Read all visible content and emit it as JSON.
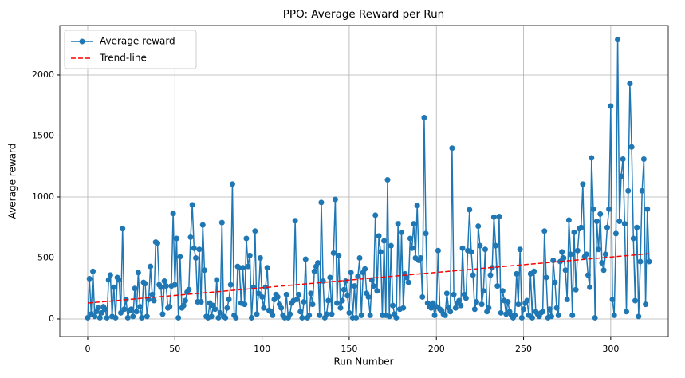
{
  "chart_data": {
    "type": "line",
    "title": "PPO: Average Reward per Run",
    "x_label": "Run Number",
    "y_label": "Average reward",
    "xlim": [
      -16,
      333
    ],
    "ylim": [
      -144,
      2405
    ],
    "xticks": [
      0,
      50,
      100,
      150,
      200,
      250,
      300
    ],
    "yticks": [
      0,
      500,
      1000,
      1500,
      2000
    ],
    "grid": true,
    "legend": "upper left",
    "series": [
      {
        "name": "Average reward",
        "color": "#1f77b4",
        "marker": true,
        "linestyle": "solid",
        "x": [
          0,
          1,
          2,
          3,
          4,
          5,
          6,
          7,
          8,
          9,
          10,
          11,
          12,
          13,
          14,
          15,
          16,
          17,
          18,
          19,
          20,
          21,
          22,
          23,
          24,
          25,
          26,
          27,
          28,
          29,
          30,
          31,
          32,
          33,
          34,
          35,
          36,
          37,
          38,
          39,
          40,
          41,
          42,
          43,
          44,
          45,
          46,
          47,
          48,
          49,
          50,
          51,
          52,
          53,
          54,
          55,
          56,
          57,
          58,
          59,
          60,
          61,
          62,
          63,
          64,
          65,
          66,
          67,
          68,
          69,
          70,
          71,
          72,
          73,
          74,
          75,
          76,
          77,
          78,
          79,
          80,
          81,
          82,
          83,
          84,
          85,
          86,
          87,
          88,
          89,
          90,
          91,
          92,
          93,
          94,
          95,
          96,
          97,
          98,
          99,
          100,
          101,
          102,
          103,
          104,
          105,
          106,
          107,
          108,
          109,
          110,
          111,
          112,
          113,
          114,
          115,
          116,
          117,
          118,
          119,
          120,
          121,
          122,
          123,
          124,
          125,
          126,
          127,
          128,
          129,
          130,
          131,
          132,
          133,
          134,
          135,
          136,
          137,
          138,
          139,
          140,
          141,
          142,
          143,
          144,
          145,
          146,
          147,
          148,
          149,
          150,
          151,
          152,
          153,
          154,
          155,
          156,
          157,
          158,
          159,
          160,
          161,
          162,
          163,
          164,
          165,
          166,
          167,
          168,
          169,
          170,
          171,
          172,
          173,
          174,
          175,
          176,
          177,
          178,
          179,
          180,
          181,
          182,
          183,
          184,
          185,
          186,
          187,
          188,
          189,
          190,
          191,
          192,
          193,
          194,
          195,
          196,
          197,
          198,
          199,
          200,
          201,
          202,
          203,
          204,
          205,
          206,
          207,
          208,
          209,
          210,
          211,
          212,
          213,
          214,
          215,
          216,
          217,
          218,
          219,
          220,
          221,
          222,
          223,
          224,
          225,
          226,
          227,
          228,
          229,
          230,
          231,
          232,
          233,
          234,
          235,
          236,
          237,
          238,
          239,
          240,
          241,
          242,
          243,
          244,
          245,
          246,
          247,
          248,
          249,
          250,
          251,
          252,
          253,
          254,
          255,
          256,
          257,
          258,
          259,
          260,
          261,
          262,
          263,
          264,
          265,
          266,
          267,
          268,
          269,
          270,
          271,
          272,
          273,
          274,
          275,
          276,
          277,
          278,
          279,
          280,
          281,
          282,
          283,
          284,
          285,
          286,
          287,
          288,
          289,
          290,
          291,
          292,
          293,
          294,
          295,
          296,
          297,
          298,
          299,
          300,
          301,
          302,
          303,
          304,
          305,
          306,
          307,
          308,
          309,
          310,
          311,
          312,
          313,
          314,
          315,
          316,
          317,
          318,
          319,
          320,
          321,
          322
        ],
        "values": [
          10,
          330,
          40,
          390,
          20,
          60,
          90,
          10,
          50,
          100,
          80,
          10,
          320,
          360,
          20,
          260,
          10,
          340,
          320,
          50,
          740,
          80,
          160,
          10,
          70,
          80,
          20,
          250,
          60,
          380,
          100,
          10,
          300,
          290,
          20,
          160,
          430,
          200,
          150,
          630,
          620,
          280,
          260,
          40,
          310,
          270,
          90,
          100,
          270,
          865,
          280,
          660,
          10,
          510,
          90,
          110,
          150,
          220,
          240,
          670,
          935,
          580,
          500,
          140,
          570,
          140,
          770,
          400,
          20,
          10,
          130,
          20,
          110,
          80,
          320,
          10,
          50,
          790,
          20,
          10,
          90,
          160,
          280,
          1105,
          30,
          10,
          430,
          420,
          130,
          420,
          120,
          660,
          430,
          520,
          10,
          260,
          720,
          40,
          210,
          500,
          180,
          90,
          260,
          420,
          70,
          60,
          30,
          160,
          200,
          180,
          120,
          90,
          30,
          10,
          200,
          10,
          40,
          130,
          150,
          805,
          160,
          200,
          60,
          10,
          140,
          490,
          10,
          30,
          210,
          120,
          390,
          430,
          460,
          30,
          955,
          310,
          10,
          40,
          150,
          340,
          40,
          540,
          980,
          130,
          520,
          90,
          150,
          240,
          310,
          190,
          50,
          380,
          10,
          270,
          10,
          350,
          500,
          30,
          380,
          410,
          210,
          180,
          30,
          320,
          270,
          850,
          230,
          680,
          550,
          30,
          640,
          30,
          1140,
          20,
          600,
          110,
          40,
          10,
          780,
          80,
          710,
          90,
          370,
          340,
          300,
          660,
          580,
          780,
          500,
          930,
          480,
          500,
          180,
          1650,
          700,
          130,
          100,
          90,
          130,
          30,
          100,
          560,
          80,
          70,
          40,
          30,
          210,
          90,
          60,
          1400,
          200,
          90,
          130,
          150,
          110,
          580,
          200,
          170,
          560,
          895,
          550,
          360,
          80,
          140,
          760,
          600,
          120,
          230,
          570,
          60,
          90,
          360,
          420,
          835,
          600,
          270,
          840,
          50,
          230,
          150,
          40,
          140,
          60,
          30,
          10,
          30,
          370,
          120,
          570,
          10,
          80,
          130,
          150,
          30,
          370,
          10,
          390,
          60,
          40,
          20,
          50,
          60,
          720,
          340,
          10,
          80,
          20,
          480,
          300,
          90,
          30,
          470,
          550,
          500,
          400,
          160,
          810,
          530,
          30,
          710,
          240,
          560,
          740,
          750,
          1105,
          510,
          530,
          360,
          260,
          1320,
          900,
          10,
          800,
          570,
          860,
          460,
          400,
          530,
          750,
          900,
          1745,
          160,
          30,
          700,
          2290,
          800,
          1170,
          1310,
          780,
          60,
          1050,
          1930,
          1410,
          660,
          150,
          750,
          20,
          470,
          1050,
          1310,
          120,
          900,
          470
        ]
      },
      {
        "name": "Trend-line",
        "color": "#ff0000",
        "marker": false,
        "linestyle": "dashed",
        "x": [
          0,
          322
        ],
        "values": [
          130,
          535
        ]
      }
    ]
  }
}
